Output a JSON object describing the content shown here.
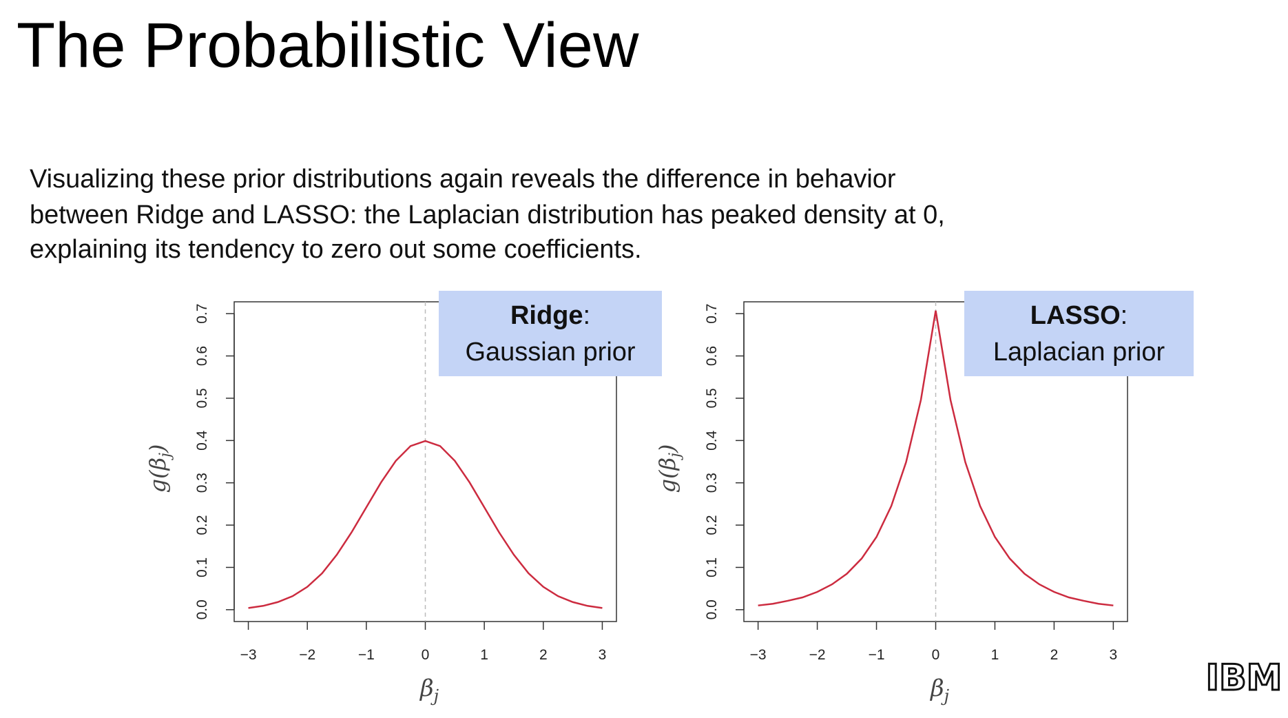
{
  "title": "The Probabilistic View",
  "body": [
    "Visualizing these prior distributions again reveals the difference in behavior",
    "between Ridge and LASSO: the Laplacian distribution has peaked density at 0,",
    "explaining its tendency to zero out some coefficients."
  ],
  "logo": "IBM",
  "chart_data": [
    {
      "type": "line",
      "annotation": {
        "bold": "Ridge",
        "colon": ":",
        "text": "Gaussian prior"
      },
      "xlabel": [
        "β",
        "j"
      ],
      "ylabel": [
        "g(β",
        "j",
        ")"
      ],
      "x": [
        -3,
        -2.75,
        -2.5,
        -2.25,
        -2,
        -1.75,
        -1.5,
        -1.25,
        -1,
        -0.75,
        -0.5,
        -0.25,
        0,
        0.25,
        0.5,
        0.75,
        1,
        1.25,
        1.5,
        1.75,
        2,
        2.25,
        2.5,
        2.75,
        3
      ],
      "series": [
        {
          "name": "Gaussian prior",
          "color": "#cc2b3f",
          "values": [
            0.004,
            0.009,
            0.018,
            0.032,
            0.054,
            0.086,
            0.13,
            0.183,
            0.242,
            0.301,
            0.352,
            0.387,
            0.399,
            0.387,
            0.352,
            0.301,
            0.242,
            0.183,
            0.13,
            0.086,
            0.054,
            0.032,
            0.018,
            0.009,
            0.004
          ]
        }
      ],
      "vline": 0,
      "xlim": [
        -3.24,
        3.24
      ],
      "ylim": [
        -0.028,
        0.728
      ],
      "xticks": [
        {
          "value": -3,
          "label": "−3"
        },
        {
          "value": -2,
          "label": "−2"
        },
        {
          "value": -1,
          "label": "−1"
        },
        0,
        1,
        2,
        3
      ],
      "yticks": [
        {
          "value": 0,
          "label": "0.0"
        },
        0.1,
        0.2,
        0.3,
        0.4,
        0.5,
        0.6,
        0.7
      ]
    },
    {
      "type": "line",
      "annotation": {
        "bold": "LASSO",
        "colon": ":",
        "text": "Laplacian prior"
      },
      "xlabel": [
        "β",
        "j"
      ],
      "ylabel": [
        "g(β",
        "j",
        ")"
      ],
      "x": [
        -3,
        -2.75,
        -2.5,
        -2.25,
        -2,
        -1.75,
        -1.5,
        -1.25,
        -1,
        -0.75,
        -0.5,
        -0.25,
        0,
        0.25,
        0.5,
        0.75,
        1,
        1.25,
        1.5,
        1.75,
        2,
        2.25,
        2.5,
        2.75,
        3
      ],
      "series": [
        {
          "name": "Laplacian prior",
          "color": "#cc2b3f",
          "values": [
            0.01,
            0.014,
            0.021,
            0.029,
            0.042,
            0.06,
            0.085,
            0.121,
            0.172,
            0.245,
            0.349,
            0.496,
            0.707,
            0.496,
            0.349,
            0.245,
            0.172,
            0.121,
            0.085,
            0.06,
            0.042,
            0.029,
            0.021,
            0.014,
            0.01
          ]
        }
      ],
      "vline": 0,
      "xlim": [
        -3.24,
        3.24
      ],
      "ylim": [
        -0.028,
        0.728
      ],
      "xticks": [
        {
          "value": -3,
          "label": "−3"
        },
        {
          "value": -2,
          "label": "−2"
        },
        {
          "value": -1,
          "label": "−1"
        },
        0,
        1,
        2,
        3
      ],
      "yticks": [
        {
          "value": 0,
          "label": "0.0"
        },
        0.1,
        0.2,
        0.3,
        0.4,
        0.5,
        0.6,
        0.7
      ]
    }
  ]
}
